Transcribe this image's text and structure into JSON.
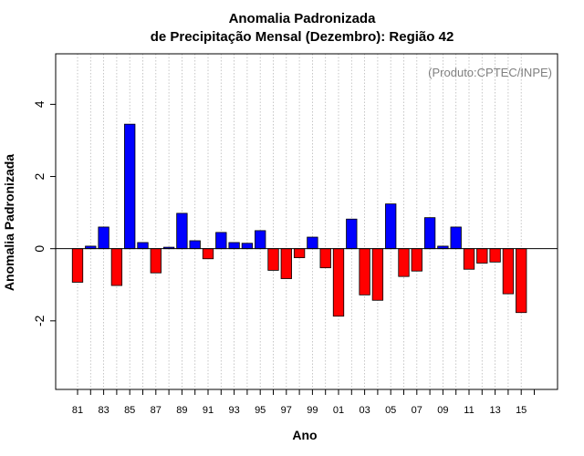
{
  "chart_data": {
    "type": "bar",
    "title_line1": "Anomalia Padronizada",
    "title_line2": "de Precipitação Mensal (Dezembro): Região 42",
    "xlabel": "Ano",
    "ylabel": "Anomalia Padronizada",
    "annotation": "(Produto:CPTEC/INPE)",
    "ylim": [
      -3.9,
      5.4
    ],
    "yticks": [
      -2,
      0,
      2,
      4
    ],
    "ytick_labels": [
      "-2",
      "0",
      "2",
      "4"
    ],
    "categories": [
      "81",
      "82",
      "83",
      "84",
      "85",
      "86",
      "87",
      "88",
      "89",
      "90",
      "91",
      "92",
      "93",
      "94",
      "95",
      "96",
      "97",
      "98",
      "99",
      "00",
      "01",
      "02",
      "03",
      "04",
      "05",
      "06",
      "07",
      "08",
      "09",
      "10",
      "11",
      "12",
      "13",
      "14",
      "15"
    ],
    "x_tick_labels": [
      "81",
      "83",
      "85",
      "87",
      "89",
      "91",
      "93",
      "95",
      "97",
      "99",
      "01",
      "03",
      "05",
      "07",
      "09",
      "11",
      "13",
      "15"
    ],
    "values": [
      -0.93,
      0.07,
      0.6,
      -1.02,
      3.45,
      0.17,
      -0.67,
      0.04,
      0.98,
      0.22,
      -0.28,
      0.45,
      0.17,
      0.15,
      0.5,
      -0.6,
      -0.83,
      -0.25,
      0.32,
      -0.53,
      -1.87,
      0.82,
      -1.28,
      -1.43,
      1.24,
      -0.77,
      -0.62,
      0.86,
      0.07,
      0.6,
      -0.57,
      -0.4,
      -0.37,
      -1.25,
      -1.77
    ],
    "colors": {
      "positive": "#0000ff",
      "negative": "#ff0000"
    },
    "grid": "vertical dotted",
    "legend": "none"
  }
}
